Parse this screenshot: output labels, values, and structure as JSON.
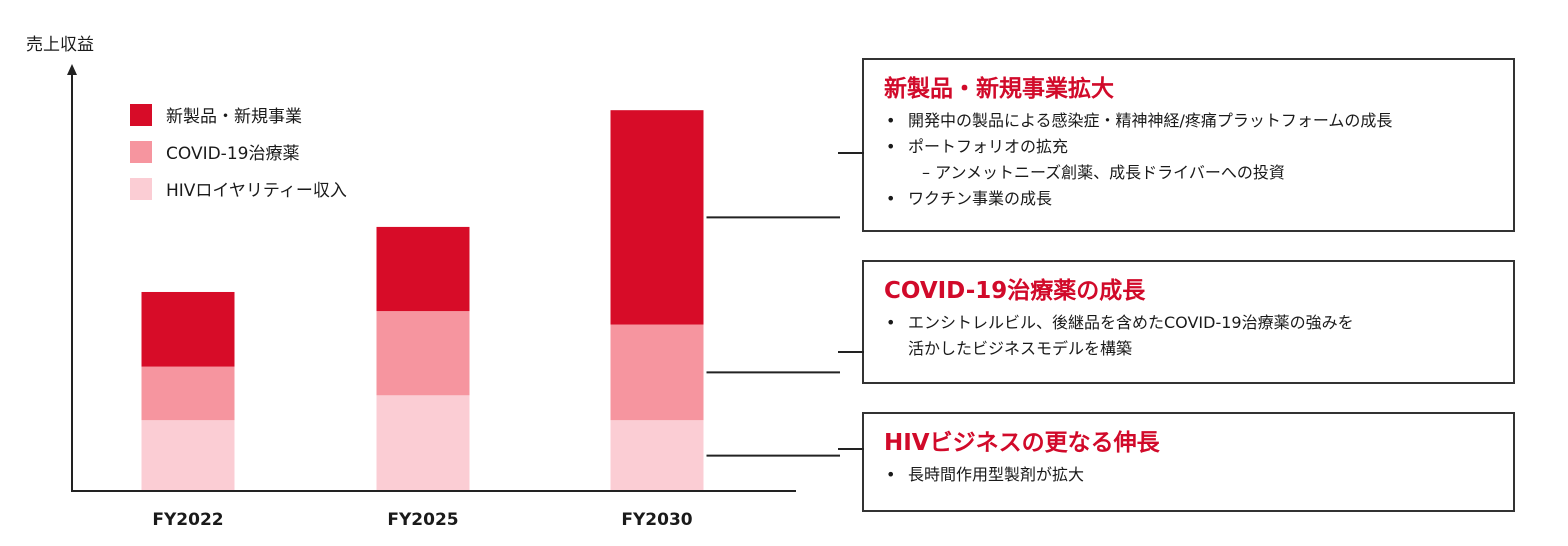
{
  "chart_data": {
    "type": "bar",
    "stacked": true,
    "ylabel": "売上収益",
    "categories": [
      "FY2022",
      "FY2025",
      "FY2030"
    ],
    "series": [
      {
        "name": "HIVロイヤリティー収入",
        "color": "#fbcdd4",
        "values": [
          18.5,
          25,
          18.5
        ]
      },
      {
        "name": "COVID-19治療薬",
        "color": "#f6959f",
        "values": [
          14,
          22,
          25
        ]
      },
      {
        "name": "新製品・新規事業",
        "color": "#d70c28",
        "values": [
          19.5,
          22,
          56
        ]
      }
    ],
    "ylim": [
      0,
      110
    ],
    "grid": false,
    "legend": "top-left"
  },
  "boxes": [
    {
      "title": "新製品・新規事業拡大",
      "bullets": [
        "開発中の製品による感染症・精神神経/疼痛プラットフォームの成長",
        "ポートフォリオの拡充"
      ],
      "sub": "– アンメットニーズ創薬、成長ドライバーへの投資",
      "bullet3": "ワクチン事業の成長"
    },
    {
      "title": "COVID-19治療薬の成長",
      "bullet": "エンシトレルビル、後継品を含めたCOVID-19治療薬の強みを",
      "cont": "活かしたビジネスモデルを構築"
    },
    {
      "title": "HIVビジネスの更なる伸長",
      "bullet": "長時間作用型製剤が拡大"
    }
  ]
}
